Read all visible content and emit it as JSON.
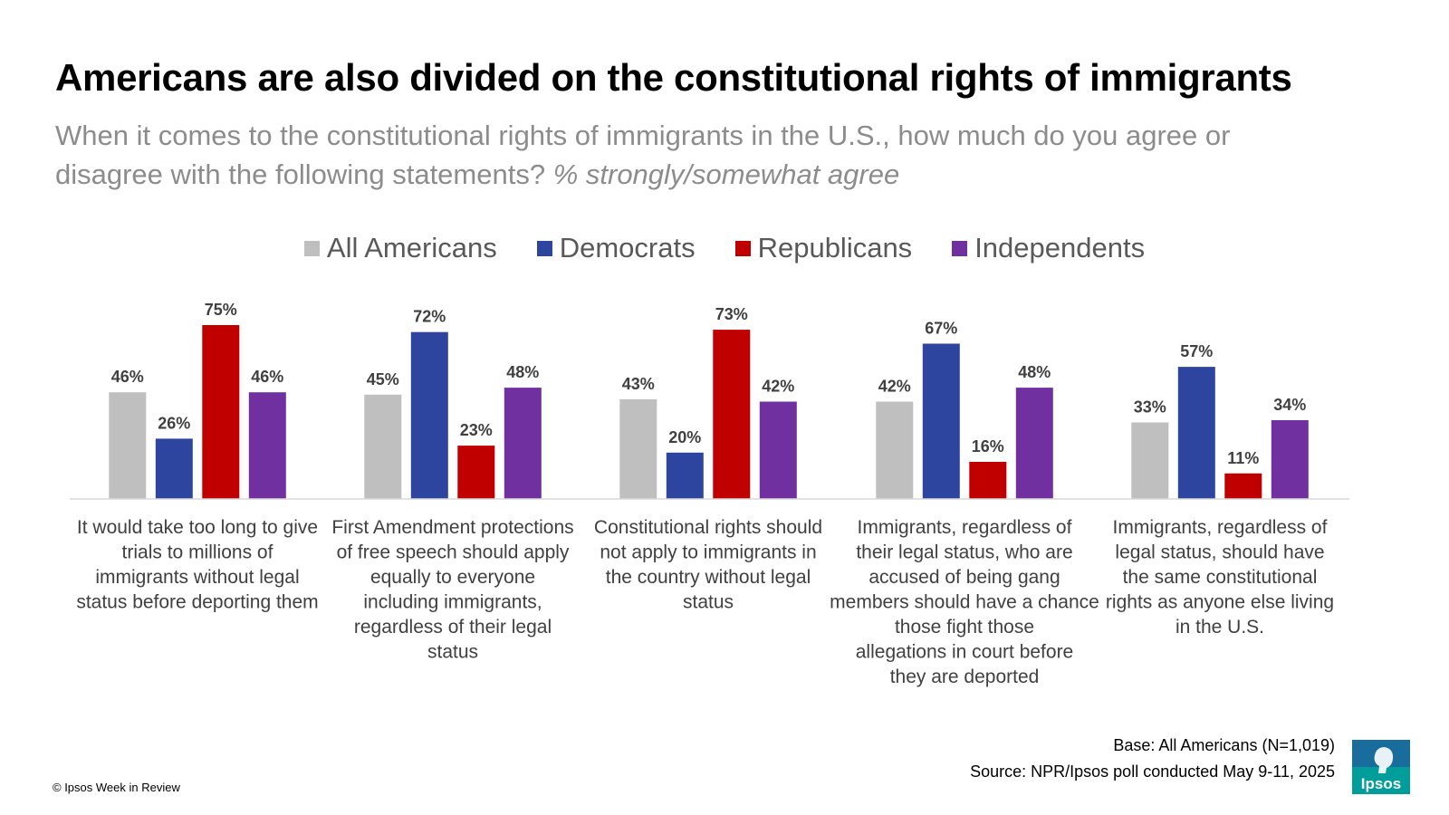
{
  "title": "Americans are also divided on the constitutional rights of immigrants",
  "subtitle": {
    "main": "When it comes to the constitutional rights of immigrants in the U.S., how much do you agree or disagree with the following statements?",
    "emphasis": "% strongly/somewhat agree"
  },
  "chart_data": {
    "type": "bar",
    "title": "",
    "xlabel": "",
    "ylabel": "",
    "ylim": [
      0,
      100
    ],
    "grid": false,
    "legend_position": "top-center",
    "value_suffix": "%",
    "categories": [
      "It would take too long to give trials to millions of immigrants without legal status before deporting them",
      "First Amendment protections of free speech should apply equally to everyone including immigrants, regardless of their legal status",
      "Constitutional rights should not apply to immigrants in the country without legal status",
      "Immigrants, regardless of their legal status, who are accused of being gang members should have a chance those fight those allegations in court before they are deported",
      "Immigrants, regardless of legal status, should have the same constitutional rights as anyone else living in the U.S."
    ],
    "series": [
      {
        "name": "All Americans",
        "color": "#bfbfbf",
        "values": [
          46,
          45,
          43,
          42,
          33
        ]
      },
      {
        "name": "Democrats",
        "color": "#2e459f",
        "values": [
          26,
          72,
          20,
          67,
          57
        ]
      },
      {
        "name": "Republicans",
        "color": "#c00000",
        "values": [
          75,
          23,
          73,
          16,
          11
        ]
      },
      {
        "name": "Independents",
        "color": "#7030a0",
        "values": [
          46,
          48,
          42,
          48,
          34
        ]
      }
    ]
  },
  "footer": {
    "base": "Base: All Americans (N=1,019)",
    "source": "Source: NPR/Ipsos poll conducted May 9-11, 2025",
    "copyright": "© Ipsos Week in Review"
  },
  "logo": {
    "text": "Ipsos",
    "color": "#009d9a"
  }
}
